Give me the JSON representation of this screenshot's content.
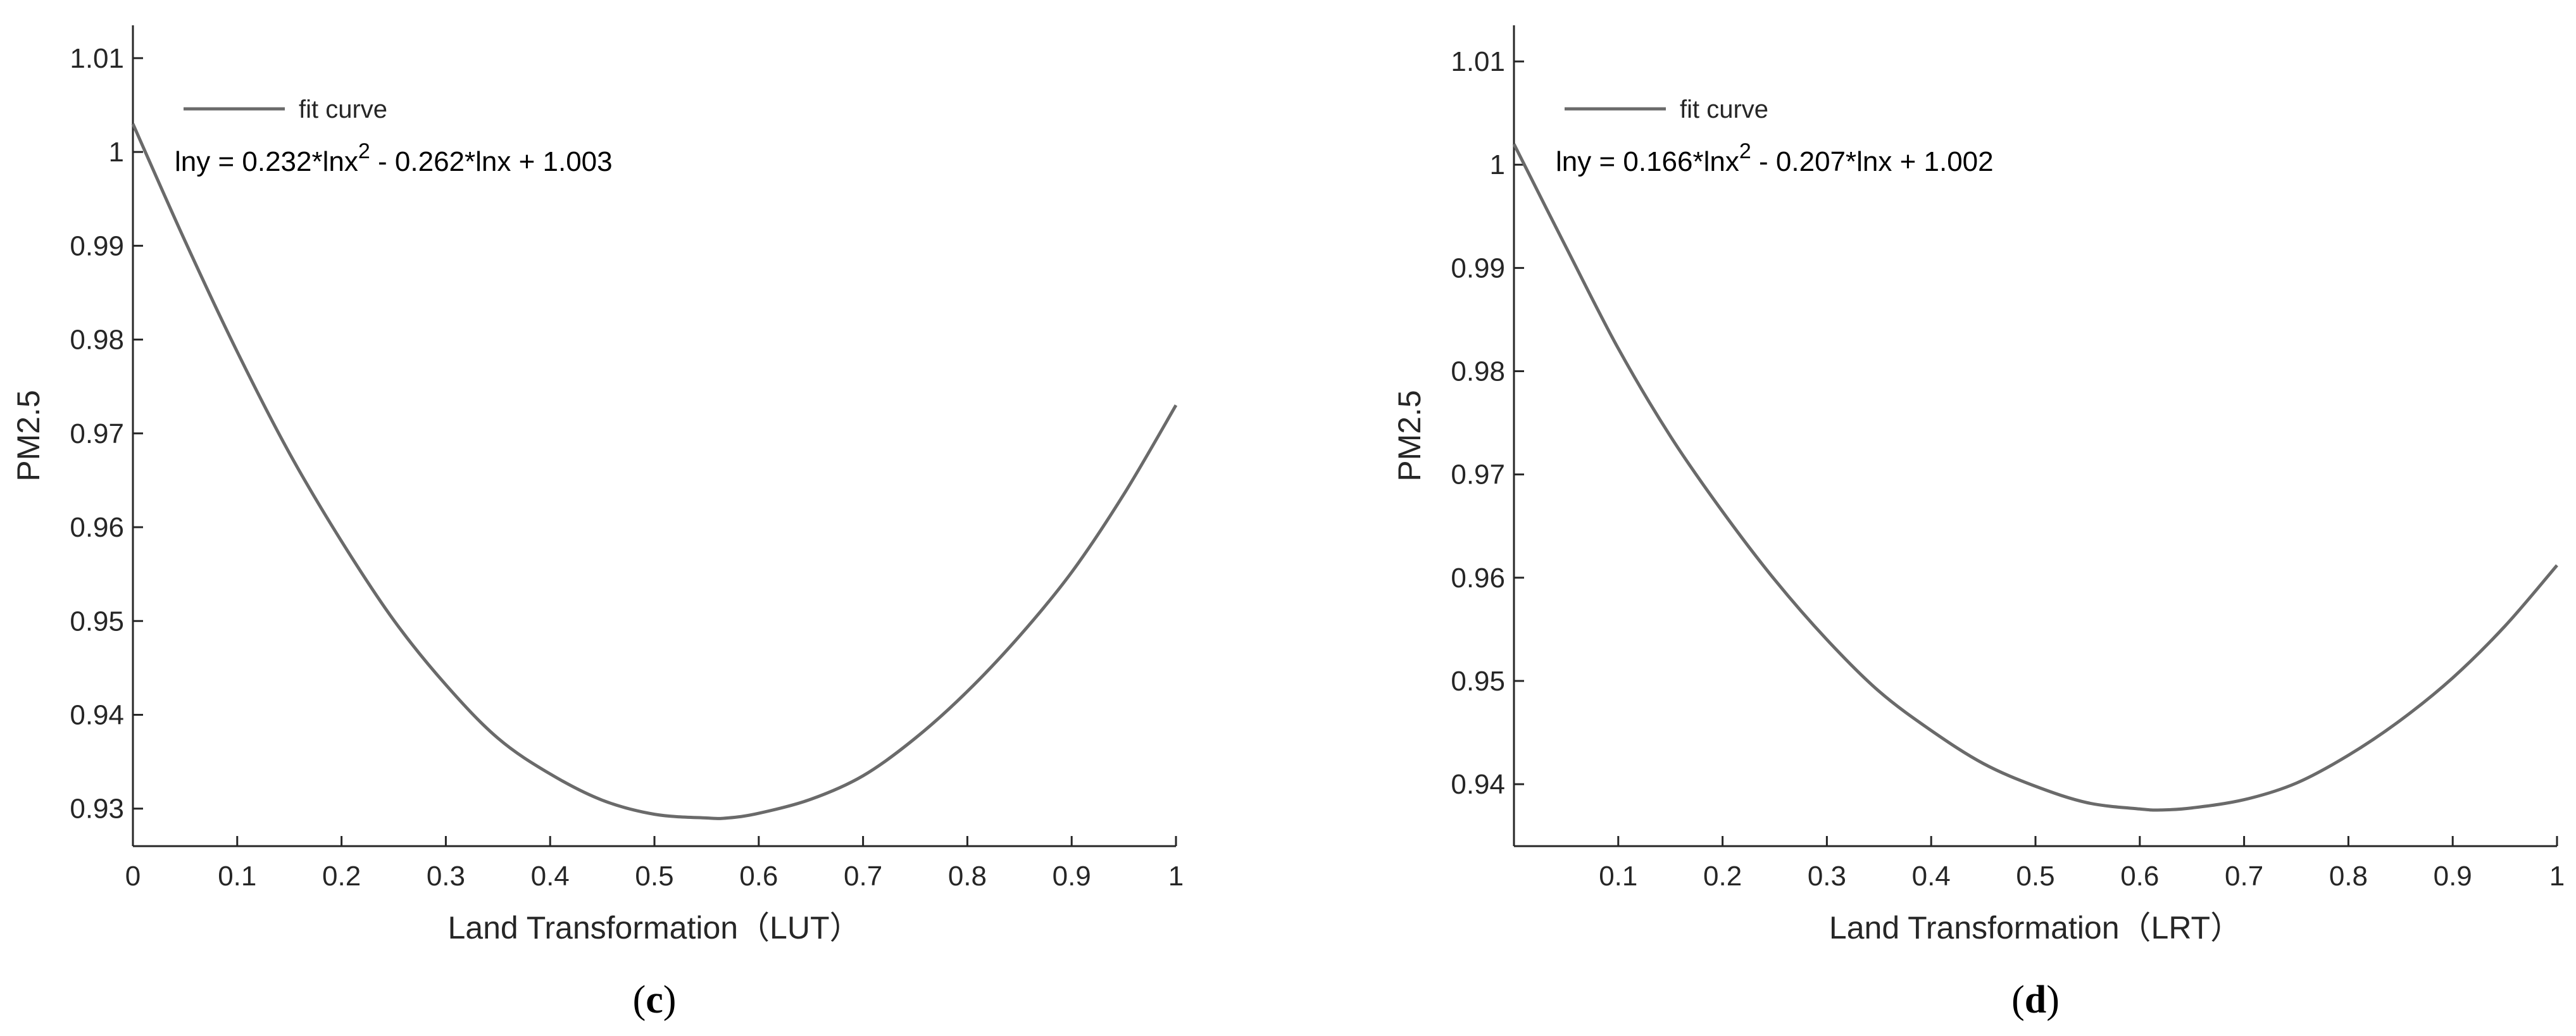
{
  "chart_data": [
    {
      "type": "line",
      "panel_label": "(c)",
      "panel_letter": "c",
      "xlabel": "Land Transformation（LUT）",
      "ylabel": "PM2.5",
      "legend": {
        "entry": "fit curve",
        "placement": "top-left"
      },
      "equation": {
        "prefix": "lny = 0.232*lnx",
        "sup": "2",
        "suffix": " - 0.262*lnx + 1.003"
      },
      "xlim": [
        0,
        1
      ],
      "ylim": [
        0.926,
        1.0135
      ],
      "x_ticks": [
        0,
        0.1,
        0.2,
        0.3,
        0.4,
        0.5,
        0.6,
        0.7,
        0.8,
        0.9,
        1
      ],
      "x_tick_labels": [
        "0",
        "0.1",
        "0.2",
        "0.3",
        "0.4",
        "0.5",
        "0.6",
        "0.7",
        "0.8",
        "0.9",
        "1"
      ],
      "y_ticks": [
        0.93,
        0.94,
        0.95,
        0.96,
        0.97,
        0.98,
        0.99,
        1.0,
        1.01
      ],
      "y_tick_labels": [
        "0.93",
        "0.94",
        "0.95",
        "0.96",
        "0.97",
        "0.98",
        "0.99",
        "1",
        "1.01"
      ],
      "series": [
        {
          "name": "fit curve",
          "color": "#6a6a6a",
          "x": [
            0,
            0.05,
            0.1,
            0.15,
            0.2,
            0.25,
            0.3,
            0.35,
            0.4,
            0.45,
            0.5,
            0.55,
            0.57,
            0.6,
            0.65,
            0.7,
            0.75,
            0.8,
            0.85,
            0.9,
            0.95,
            1.0
          ],
          "y": [
            1.003,
            0.9905,
            0.9787,
            0.9679,
            0.9585,
            0.9501,
            0.9432,
            0.9375,
            0.9337,
            0.9309,
            0.9294,
            0.929,
            0.929,
            0.9295,
            0.931,
            0.9335,
            0.9375,
            0.9425,
            0.9484,
            0.9552,
            0.9635,
            0.973
          ]
        }
      ],
      "grid": false
    },
    {
      "type": "line",
      "panel_label": "(d)",
      "panel_letter": "d",
      "xlabel": "Land Transformation（LRT）",
      "ylabel": "PM2.5",
      "legend": {
        "entry": "fit curve",
        "placement": "top-left"
      },
      "equation": {
        "prefix": "lny = 0.166*lnx",
        "sup": "2",
        "suffix": " - 0.207*lnx + 1.002"
      },
      "xlim": [
        0,
        1
      ],
      "ylim": [
        0.934,
        1.0135
      ],
      "x_ticks": [
        0.1,
        0.2,
        0.3,
        0.4,
        0.5,
        0.6,
        0.7,
        0.8,
        0.9,
        1
      ],
      "x_tick_labels": [
        "0.1",
        "0.2",
        "0.3",
        "0.4",
        "0.5",
        "0.6",
        "0.7",
        "0.8",
        "0.9",
        "1"
      ],
      "y_ticks": [
        0.94,
        0.95,
        0.96,
        0.97,
        0.98,
        0.99,
        1.0,
        1.01
      ],
      "y_tick_labels": [
        "0.94",
        "0.95",
        "0.96",
        "0.97",
        "0.98",
        "0.99",
        "1",
        "1.01"
      ],
      "series": [
        {
          "name": "fit curve",
          "color": "#6a6a6a",
          "x": [
            0,
            0.05,
            0.1,
            0.15,
            0.2,
            0.25,
            0.3,
            0.35,
            0.4,
            0.45,
            0.5,
            0.55,
            0.6,
            0.62,
            0.65,
            0.7,
            0.75,
            0.8,
            0.85,
            0.9,
            0.95,
            1.0
          ],
          "y": [
            1.002,
            0.992,
            0.9822,
            0.9737,
            0.9664,
            0.9598,
            0.954,
            0.949,
            0.9452,
            0.942,
            0.9398,
            0.9382,
            0.9376,
            0.9375,
            0.9377,
            0.9385,
            0.9401,
            0.9428,
            0.9462,
            0.9503,
            0.9553,
            0.9612
          ]
        }
      ],
      "grid": false
    }
  ]
}
